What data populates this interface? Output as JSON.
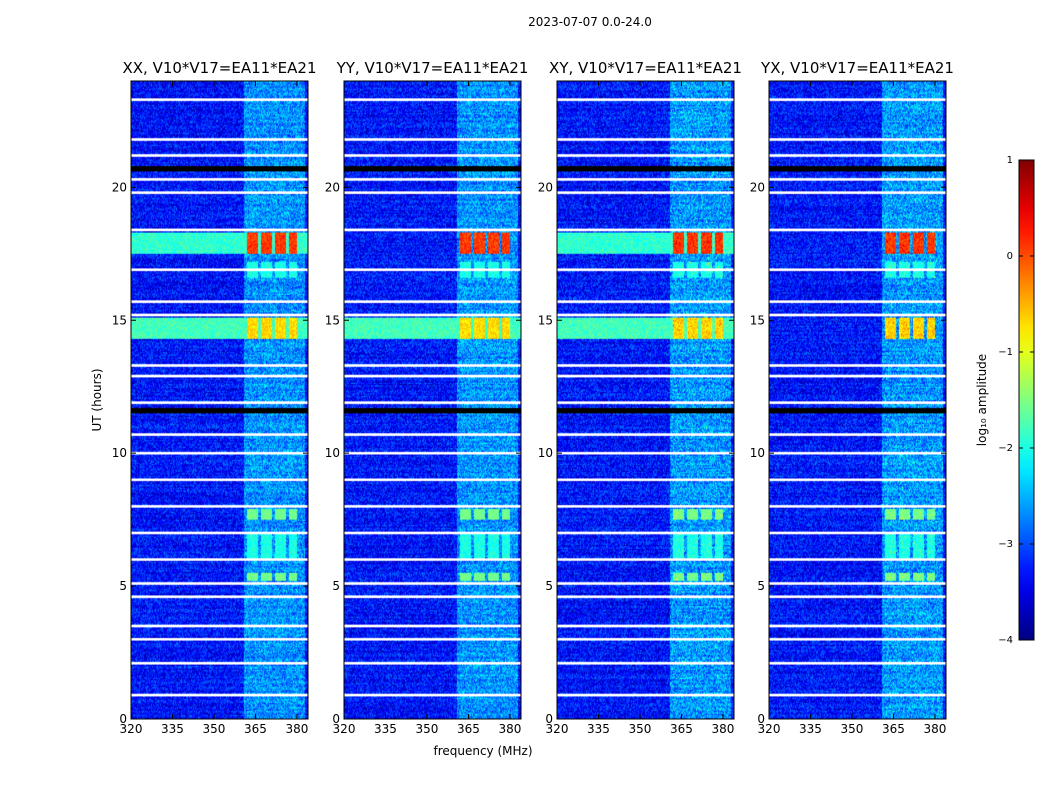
{
  "chart_data": {
    "type": "heatmap",
    "suptitle": "2023-07-07 0.0-24.0",
    "panels": [
      {
        "title": "XX, V10*V17=EA11*EA21",
        "pol": "XX"
      },
      {
        "title": "YY, V10*V17=EA11*EA21",
        "pol": "YY"
      },
      {
        "title": "XY, V10*V17=EA11*EA21",
        "pol": "XY"
      },
      {
        "title": "YX, V10*V17=EA11*EA21",
        "pol": "YX"
      }
    ],
    "xlabel": "frequency (MHz)",
    "ylabel": "UT (hours)",
    "xlim": [
      320,
      384
    ],
    "ylim": [
      0,
      24
    ],
    "xticks": [
      320,
      335,
      350,
      365,
      380
    ],
    "yticks": [
      0,
      5,
      10,
      15,
      20
    ],
    "colorbar": {
      "label": "log₁₀ amplitude",
      "range": [
        -4,
        1
      ],
      "ticks": [
        1,
        0,
        -1,
        -2,
        -3,
        -4
      ],
      "tick_labels": [
        "1",
        "0",
        "−1",
        "−2",
        "−3",
        "−4"
      ],
      "colormap": "jet"
    },
    "background_log_amplitude": -3.3,
    "rfi_channel_band_mhz": [
      361,
      383
    ],
    "rfi_blocks_mhz": [
      [
        362,
        366
      ],
      [
        367,
        371
      ],
      [
        372,
        376
      ],
      [
        377,
        380
      ]
    ],
    "broadband_events_ut": [
      {
        "start": 14.3,
        "end": 15.1,
        "log_amplitude_low": -1.8,
        "log_amplitude_high": -0.7
      },
      {
        "start": 17.5,
        "end": 18.3,
        "log_amplitude_low": -1.9,
        "log_amplitude_high": 0.1
      }
    ],
    "flagged_rows_ut": [
      0.9,
      2.1,
      3.0,
      3.5,
      4.6,
      5.1,
      6.0,
      7.0,
      8.0,
      9.0,
      10.0,
      10.7,
      11.9,
      12.9,
      13.3,
      15.2,
      15.7,
      16.9,
      18.4,
      19.8,
      20.3,
      21.2,
      21.8,
      23.3
    ],
    "no_data_rows_ut": [
      11.6,
      20.7
    ]
  }
}
